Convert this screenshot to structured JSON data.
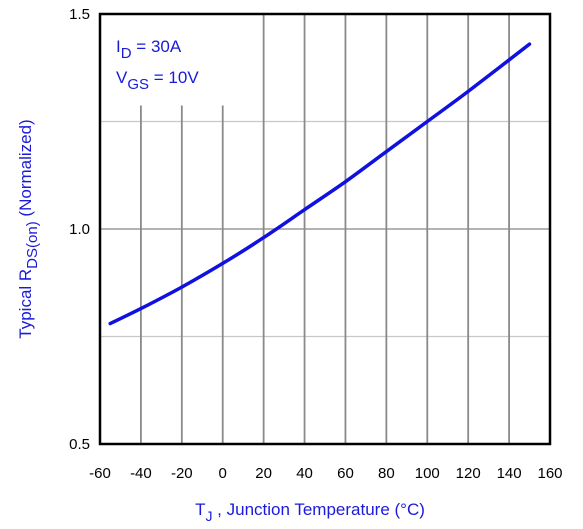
{
  "chart_data": {
    "type": "line",
    "x": [
      -55,
      -40,
      -20,
      0,
      20,
      40,
      60,
      80,
      100,
      120,
      150
    ],
    "series": [
      {
        "values": [
          0.78,
          0.815,
          0.865,
          0.92,
          0.98,
          1.045,
          1.11,
          1.18,
          1.25,
          1.32,
          1.43
        ],
        "color": "#1010e0"
      }
    ],
    "xlim": [
      -60,
      160
    ],
    "ylim": [
      0.5,
      1.5
    ],
    "xticks": [
      "-60",
      "-40",
      "-20",
      "0",
      "20",
      "40",
      "60",
      "80",
      "100",
      "120",
      "140",
      "160"
    ],
    "yticks": [
      "0.5",
      "1.0",
      "1.5"
    ],
    "xlabel": {
      "sym": "T",
      "sub": "J",
      "rest": " , Junction Temperature (°C)"
    },
    "ylabel": {
      "pre": "Typical  R",
      "sub": "DS(on)",
      "post": " (Normalized)"
    },
    "annotations": [
      {
        "sym": "I",
        "sub": "D",
        "rest": " = 30A"
      },
      {
        "sym": "V",
        "sub": "GS",
        "rest": " = 10V"
      }
    ],
    "grid": true,
    "ygrid": [
      0.5,
      0.75,
      1.0,
      1.25,
      1.5
    ],
    "accent_color": "#1a1adb"
  }
}
